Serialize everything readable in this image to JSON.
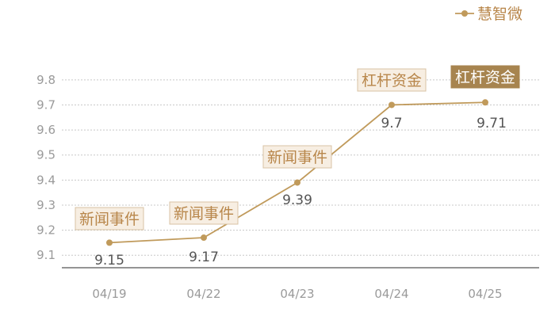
{
  "chart_data": {
    "type": "line",
    "categories": [
      "04/19",
      "04/22",
      "04/23",
      "04/24",
      "04/25"
    ],
    "series": [
      {
        "name": "慧智微",
        "values": [
          9.15,
          9.17,
          9.39,
          9.7,
          9.71
        ],
        "value_labels": [
          "9.15",
          "9.17",
          "9.39",
          "9.7",
          "9.71"
        ]
      }
    ],
    "y_ticks": [
      "9.1",
      "9.2",
      "9.3",
      "9.4",
      "9.5",
      "9.6",
      "9.7",
      "9.8"
    ],
    "ylim": [
      9.05,
      9.85
    ],
    "grid": true,
    "legend_position": "top-right",
    "annotations": [
      {
        "category_index": 0,
        "text": "新闻事件",
        "highlight": false
      },
      {
        "category_index": 1,
        "text": "新闻事件",
        "highlight": false
      },
      {
        "category_index": 2,
        "text": "新闻事件",
        "highlight": false
      },
      {
        "category_index": 3,
        "text": "杠杆资金",
        "highlight": false
      },
      {
        "category_index": 4,
        "text": "杠杆资金",
        "highlight": true
      }
    ],
    "colors": {
      "line": "#c09a5b",
      "text_dark": "#555555",
      "tick": "#9a9a9a",
      "grid": "#c8c8c8",
      "axis": "#555555",
      "annotation_bg": "#f7eee2",
      "annotation_border": "#d8c3a4",
      "annotation_text": "#b8864a",
      "annotation_hl_bg": "#a7844f",
      "annotation_hl_text": "#ffffff"
    }
  }
}
